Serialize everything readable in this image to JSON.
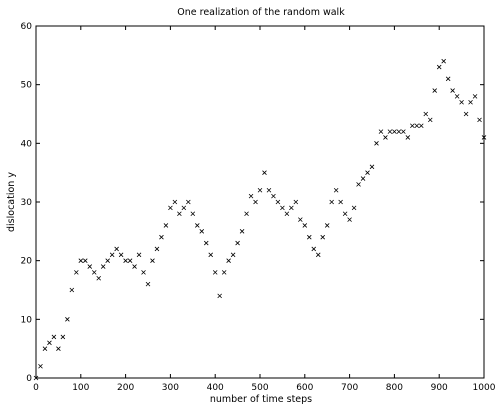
{
  "chart_data": {
    "type": "scatter",
    "title": "One realization of the random walk",
    "xlabel": "number of time steps",
    "ylabel": "dislocation y",
    "xlim": [
      0,
      1000
    ],
    "ylim": [
      0,
      60
    ],
    "xticks": [
      0,
      100,
      200,
      300,
      400,
      500,
      600,
      700,
      800,
      900,
      1000
    ],
    "yticks": [
      0,
      10,
      20,
      30,
      40,
      50,
      60
    ],
    "grid": false,
    "marker": "x",
    "color": "#000000",
    "series": [
      {
        "x": [
          0,
          10,
          20,
          30,
          40,
          50,
          60,
          70,
          80,
          90,
          100,
          110,
          120,
          130,
          140,
          150,
          160,
          170,
          180,
          190,
          200,
          210,
          220,
          230,
          240,
          250,
          260,
          270,
          280,
          290,
          300,
          310,
          320,
          330,
          340,
          350,
          360,
          370,
          380,
          390,
          400,
          410,
          420,
          430,
          440,
          450,
          460,
          470,
          480,
          490,
          500,
          510,
          520,
          530,
          540,
          550,
          560,
          570,
          580,
          590,
          600,
          610,
          620,
          630,
          640,
          650,
          660,
          670,
          680,
          690,
          700,
          710,
          720,
          730,
          740,
          750,
          760,
          770,
          780,
          790,
          800,
          810,
          820,
          830,
          840,
          850,
          860,
          870,
          880,
          890,
          900,
          910,
          920,
          930,
          940,
          950,
          960,
          970,
          980,
          990,
          1000
        ],
        "y": [
          0,
          2,
          5,
          6,
          7,
          5,
          7,
          10,
          15,
          18,
          20,
          20,
          19,
          18,
          17,
          19,
          20,
          21,
          22,
          21,
          20,
          20,
          19,
          21,
          18,
          16,
          20,
          22,
          24,
          26,
          29,
          30,
          28,
          29,
          30,
          28,
          26,
          25,
          23,
          21,
          18,
          14,
          18,
          20,
          21,
          23,
          25,
          28,
          31,
          30,
          32,
          35,
          32,
          31,
          30,
          29,
          28,
          29,
          30,
          27,
          26,
          24,
          22,
          21,
          24,
          26,
          30,
          32,
          30,
          28,
          27,
          29,
          33,
          34,
          35,
          36,
          40,
          42,
          41,
          42,
          42,
          42,
          42,
          41,
          43,
          43,
          43,
          45,
          44,
          49,
          53,
          54,
          51,
          49,
          48,
          47,
          45,
          47,
          48,
          44,
          41
        ]
      }
    ]
  }
}
